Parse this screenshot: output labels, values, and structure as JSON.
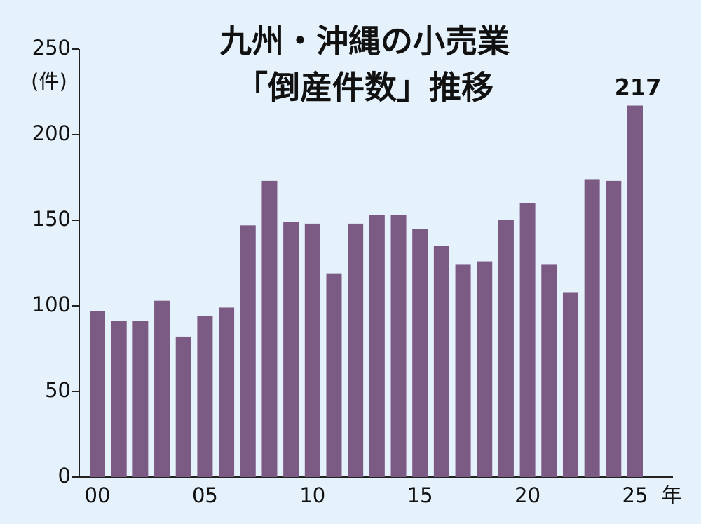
{
  "chart_data": {
    "type": "bar",
    "title": "九州・沖縄の小売業",
    "subtitle": "「倒産件数」推移",
    "y_unit": "(件)",
    "x_unit": "年",
    "categories": [
      "00",
      null,
      null,
      null,
      null,
      "05",
      null,
      null,
      null,
      null,
      "10",
      null,
      null,
      null,
      null,
      "15",
      null,
      null,
      null,
      null,
      "20",
      null,
      null,
      null,
      null,
      "25"
    ],
    "values": [
      97,
      91,
      91,
      103,
      82,
      94,
      99,
      147,
      173,
      149,
      148,
      119,
      148,
      153,
      153,
      145,
      135,
      124,
      126,
      150,
      160,
      124,
      108,
      174,
      173,
      217
    ],
    "color": "#7b5a84",
    "ylim": [
      0,
      250
    ],
    "yticks": [
      0,
      50,
      100,
      150,
      200,
      250
    ]
  }
}
